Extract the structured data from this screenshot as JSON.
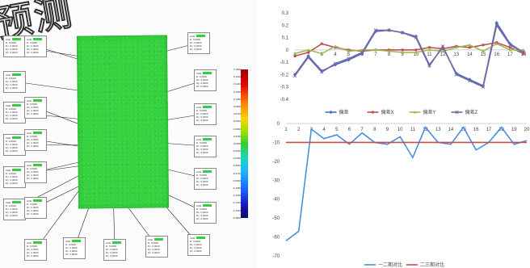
{
  "watermark": "预测",
  "left_panel": {
    "colorbar_labels": [
      "0.1800",
      "0.1620",
      "0.1440",
      "0.1260",
      "0.1080",
      "0.0900",
      "0.0720",
      "0.0540",
      "0.0360",
      "0.0180",
      "0.0000",
      "-0.0180",
      "-0.0360",
      "-0.0540",
      "-0.0720",
      "-0.0900",
      "-0.1080",
      "-0.1260",
      "-0.1440",
      "-0.1620",
      "-0.1800"
    ],
    "annotation_header": "ACE",
    "annotation_rows": [
      "D: 0.0000",
      "Dx: 0.0000",
      "Dy: 0.0000",
      "Dz: 0.0000"
    ],
    "annotation_count": 22
  },
  "chart_data": [
    {
      "type": "line",
      "categories": [
        "1",
        "2",
        "3",
        "4",
        "5",
        "6",
        "7",
        "8",
        "9",
        "10",
        "11",
        "12",
        "13",
        "14",
        "15",
        "16",
        "17",
        "18"
      ],
      "ylim": [
        -0.4,
        0.3
      ],
      "yticks": [
        "0.3",
        "0.2",
        "0.1",
        "0",
        "-0.1",
        "-0.2",
        "-0.3",
        "-0.4"
      ],
      "grid": false,
      "legend_position": "bottom",
      "series": [
        {
          "name": "偏差",
          "color": "#4472c4",
          "values": [
            -0.2,
            -0.05,
            -0.17,
            -0.12,
            -0.08,
            -0.03,
            0.15,
            0.16,
            0.14,
            0.11,
            -0.12,
            0.02,
            -0.19,
            -0.24,
            -0.29,
            0.22,
            0.05,
            -0.02
          ]
        },
        {
          "name": "偏差X",
          "color": "#c0504d",
          "values": [
            -0.05,
            -0.02,
            0.05,
            0.02,
            0.0,
            -0.01,
            0.0,
            0.0,
            0.0,
            0.0,
            0.02,
            0.01,
            0.03,
            0.02,
            0.04,
            0.06,
            0.02,
            -0.03
          ]
        },
        {
          "name": "偏差Y",
          "color": "#9bbb59",
          "values": [
            -0.03,
            0.0,
            -0.03,
            0.03,
            -0.01,
            0.0,
            0.0,
            -0.01,
            -0.02,
            -0.02,
            0.0,
            -0.01,
            0.02,
            0.04,
            -0.01,
            0.05,
            0.0,
            0.0
          ]
        },
        {
          "name": "偏差Z",
          "color": "#8064a2",
          "values": [
            -0.21,
            -0.06,
            -0.18,
            -0.11,
            -0.07,
            -0.02,
            0.16,
            0.16,
            0.14,
            0.1,
            -0.13,
            0.03,
            -0.2,
            -0.25,
            -0.3,
            0.2,
            0.04,
            -0.02
          ]
        }
      ]
    },
    {
      "type": "line",
      "categories": [
        "1",
        "2",
        "3",
        "4",
        "5",
        "6",
        "7",
        "8",
        "9",
        "10",
        "11",
        "12",
        "13",
        "14",
        "15",
        "16",
        "17",
        "18",
        "19",
        "20"
      ],
      "ylim": [
        -70,
        0
      ],
      "yticks": [
        "0",
        "-10",
        "-20",
        "-30",
        "-40",
        "-50",
        "-60",
        "-70"
      ],
      "grid": false,
      "legend_position": "bottom",
      "series": [
        {
          "name": "一二期对比",
          "color": "#4a90d9",
          "values": [
            -62,
            -57,
            -3,
            -8,
            -6,
            -11,
            -5,
            -10,
            -11,
            -7,
            -18,
            -2,
            -10,
            -11,
            -2,
            -14,
            -10,
            -2,
            -11,
            -9
          ]
        },
        {
          "name": "二三期对比",
          "color": "#c0504d",
          "values": [
            -10,
            -10,
            -10,
            -10,
            -10,
            -10,
            -10,
            -10,
            -10,
            -10,
            -10,
            -10,
            -10,
            -10,
            -10,
            -10,
            -10,
            -10,
            -10,
            -10
          ]
        }
      ]
    }
  ]
}
